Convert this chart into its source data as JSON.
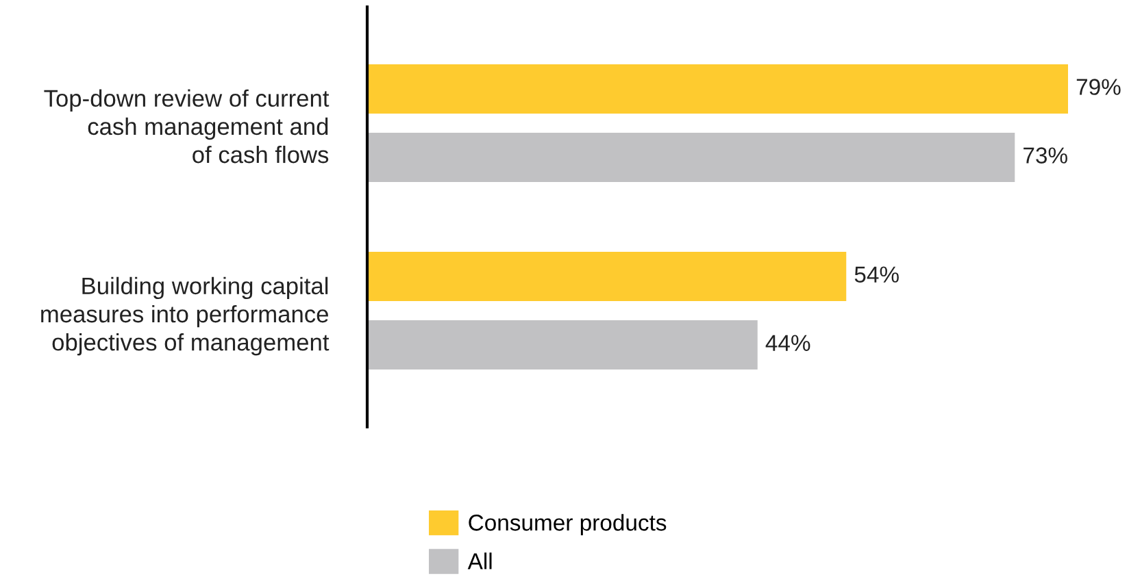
{
  "chart_data": {
    "type": "bar",
    "orientation": "horizontal",
    "categories": [
      "Top-down review of current\ncash management and\nof cash flows",
      "Building working capital\nmeasures into performance\nobjectives of management"
    ],
    "series": [
      {
        "name": "Consumer products",
        "color": "#fecb2f",
        "values": [
          79,
          54
        ],
        "value_labels": [
          "79%",
          "54%"
        ]
      },
      {
        "name": "All",
        "color": "#c1c1c3",
        "values": [
          73,
          44
        ],
        "value_labels": [
          "73%",
          "44%"
        ]
      }
    ],
    "legend": "bottom",
    "grid": false
  }
}
